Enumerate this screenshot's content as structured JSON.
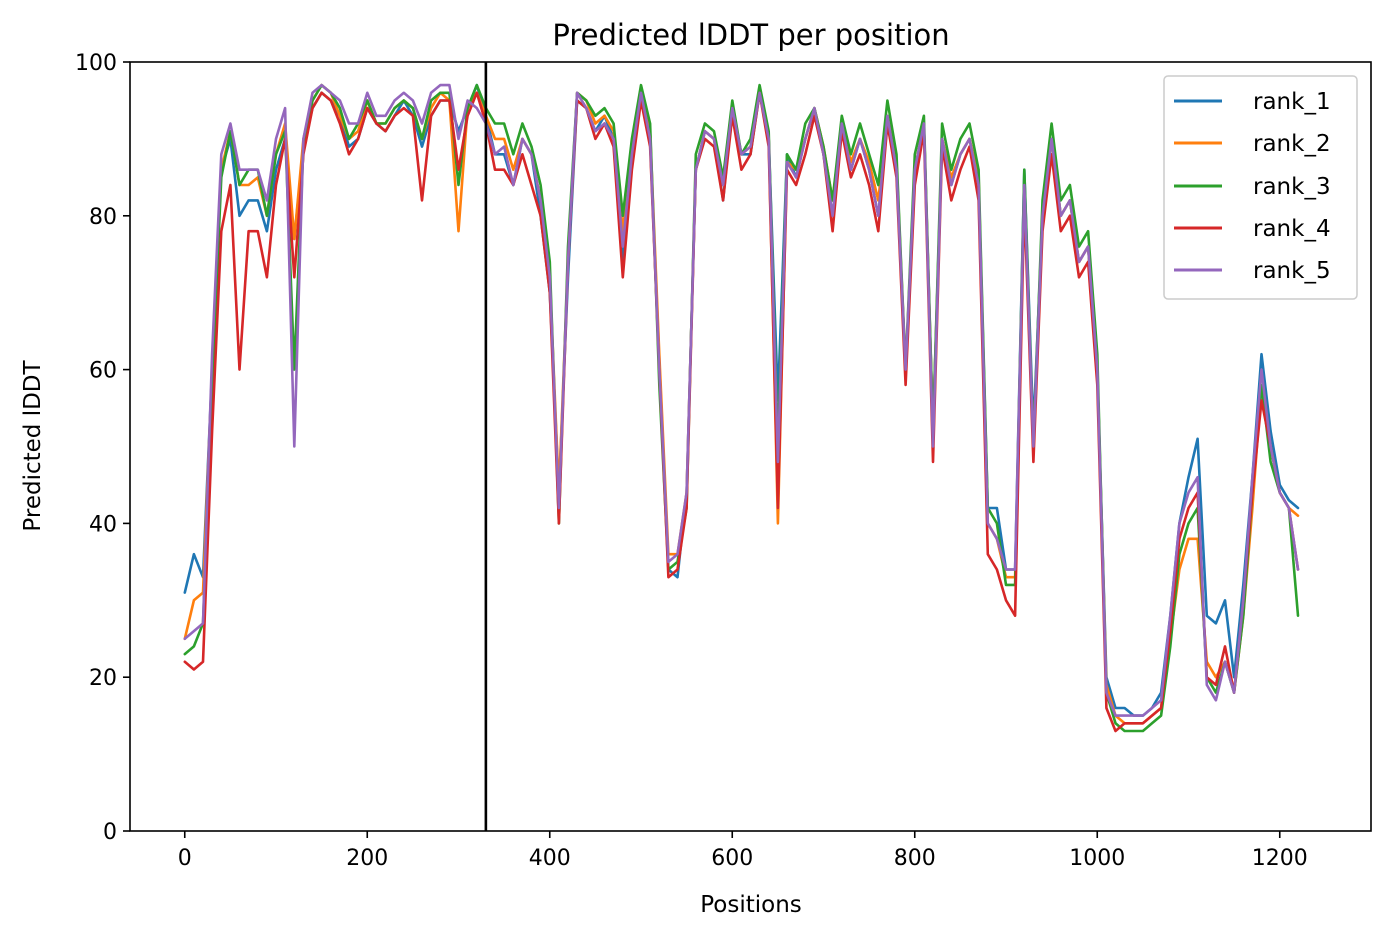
{
  "chart_data": {
    "type": "line",
    "title": "Predicted lDDT per position",
    "xlabel": "Positions",
    "ylabel": "Predicted lDDT",
    "xlim": [
      -60,
      1300
    ],
    "ylim": [
      0,
      100
    ],
    "x_ticks": [
      0,
      200,
      400,
      600,
      800,
      1000,
      1200
    ],
    "y_ticks": [
      0,
      20,
      40,
      60,
      80,
      100
    ],
    "grid": false,
    "legend_position": "top-right",
    "boundary_lines_x": [
      330
    ],
    "x_step": 10,
    "x_start": 0,
    "series": [
      {
        "name": "rank_1",
        "color": "#1f77b4",
        "values": [
          31,
          36,
          33,
          60,
          86,
          90,
          80,
          82,
          82,
          78,
          86,
          90,
          77,
          89,
          94,
          96,
          95,
          93,
          89,
          90,
          94,
          92,
          91,
          93,
          95,
          93,
          89,
          93,
          95,
          95,
          91,
          94,
          97,
          93,
          88,
          88,
          84,
          90,
          88,
          80,
          70,
          44,
          72,
          95,
          94,
          91,
          93,
          90,
          74,
          88,
          95,
          90,
          60,
          34,
          33,
          44,
          86,
          91,
          90,
          82,
          94,
          88,
          88,
          96,
          90,
          56,
          88,
          85,
          90,
          94,
          88,
          80,
          92,
          86,
          90,
          86,
          80,
          92,
          86,
          60,
          85,
          92,
          52,
          90,
          84,
          88,
          90,
          84,
          42,
          42,
          34,
          34,
          86,
          52,
          80,
          90,
          80,
          82,
          74,
          76,
          60,
          20,
          16,
          16,
          15,
          15,
          16,
          18,
          28,
          40,
          46,
          51,
          28,
          27,
          30,
          20,
          32,
          46,
          62,
          52,
          45,
          43,
          42
        ]
      },
      {
        "name": "rank_2",
        "color": "#ff7f0e",
        "values": [
          25,
          30,
          31,
          60,
          86,
          91,
          84,
          84,
          85,
          80,
          88,
          92,
          77,
          90,
          95,
          97,
          96,
          93,
          90,
          91,
          95,
          92,
          92,
          94,
          95,
          94,
          90,
          94,
          96,
          95,
          78,
          94,
          96,
          93,
          90,
          90,
          86,
          90,
          88,
          82,
          72,
          44,
          74,
          96,
          95,
          92,
          93,
          91,
          78,
          88,
          96,
          91,
          62,
          36,
          36,
          44,
          86,
          91,
          90,
          84,
          94,
          88,
          89,
          96,
          90,
          40,
          87,
          86,
          90,
          94,
          89,
          82,
          92,
          87,
          90,
          87,
          82,
          93,
          87,
          60,
          86,
          92,
          52,
          90,
          85,
          88,
          90,
          85,
          40,
          38,
          33,
          33,
          84,
          50,
          80,
          90,
          80,
          82,
          74,
          76,
          60,
          19,
          15,
          14,
          14,
          14,
          15,
          16,
          25,
          34,
          38,
          38,
          22,
          20,
          22,
          18,
          28,
          42,
          58,
          50,
          44,
          42,
          41
        ]
      },
      {
        "name": "rank_3",
        "color": "#2ca02c",
        "values": [
          23,
          24,
          27,
          58,
          85,
          91,
          84,
          86,
          86,
          80,
          88,
          91,
          60,
          89,
          95,
          97,
          96,
          94,
          90,
          92,
          95,
          92,
          92,
          94,
          95,
          94,
          90,
          95,
          96,
          96,
          84,
          94,
          97,
          94,
          92,
          92,
          88,
          92,
          89,
          84,
          74,
          40,
          76,
          96,
          95,
          93,
          94,
          92,
          80,
          90,
          97,
          92,
          58,
          34,
          35,
          42,
          88,
          92,
          91,
          85,
          95,
          88,
          90,
          97,
          91,
          50,
          88,
          86,
          92,
          94,
          89,
          82,
          93,
          88,
          92,
          88,
          84,
          95,
          88,
          60,
          88,
          93,
          52,
          92,
          86,
          90,
          92,
          86,
          42,
          40,
          32,
          32,
          86,
          50,
          82,
          92,
          82,
          84,
          76,
          78,
          62,
          18,
          14,
          13,
          13,
          13,
          14,
          15,
          24,
          36,
          40,
          42,
          20,
          18,
          22,
          18,
          28,
          44,
          58,
          48,
          44,
          42,
          28
        ]
      },
      {
        "name": "rank_4",
        "color": "#d62728",
        "values": [
          22,
          21,
          22,
          52,
          78,
          84,
          60,
          78,
          78,
          72,
          84,
          90,
          72,
          88,
          94,
          96,
          95,
          92,
          88,
          90,
          94,
          92,
          91,
          93,
          94,
          93,
          82,
          93,
          95,
          95,
          86,
          93,
          96,
          92,
          86,
          86,
          84,
          88,
          84,
          80,
          70,
          40,
          74,
          95,
          94,
          90,
          92,
          89,
          72,
          86,
          95,
          89,
          60,
          33,
          34,
          42,
          86,
          90,
          89,
          82,
          93,
          86,
          88,
          96,
          89,
          42,
          86,
          84,
          88,
          93,
          88,
          78,
          91,
          85,
          88,
          84,
          78,
          92,
          85,
          58,
          84,
          91,
          48,
          89,
          82,
          86,
          89,
          82,
          36,
          34,
          30,
          28,
          82,
          48,
          78,
          88,
          78,
          80,
          72,
          74,
          58,
          16,
          13,
          14,
          14,
          14,
          15,
          16,
          26,
          38,
          42,
          44,
          20,
          19,
          24,
          18,
          30,
          44,
          56,
          50,
          44,
          42,
          34
        ]
      },
      {
        "name": "rank_5",
        "color": "#9467bd",
        "values": [
          25,
          26,
          27,
          62,
          88,
          92,
          86,
          86,
          86,
          82,
          90,
          94,
          50,
          90,
          96,
          97,
          96,
          95,
          92,
          92,
          96,
          93,
          93,
          95,
          96,
          95,
          92,
          96,
          97,
          97,
          90,
          95,
          94,
          92,
          88,
          89,
          84,
          90,
          88,
          82,
          72,
          42,
          74,
          96,
          94,
          91,
          92,
          90,
          76,
          88,
          96,
          90,
          60,
          35,
          36,
          44,
          86,
          91,
          90,
          84,
          94,
          88,
          89,
          96,
          90,
          48,
          87,
          85,
          90,
          94,
          88,
          80,
          92,
          86,
          90,
          86,
          80,
          93,
          86,
          60,
          86,
          92,
          50,
          90,
          84,
          88,
          90,
          84,
          40,
          38,
          34,
          34,
          84,
          50,
          80,
          90,
          80,
          82,
          74,
          76,
          60,
          18,
          15,
          15,
          15,
          15,
          16,
          17,
          28,
          40,
          44,
          46,
          19,
          17,
          22,
          18,
          30,
          46,
          60,
          50,
          44,
          42,
          34
        ]
      }
    ]
  }
}
